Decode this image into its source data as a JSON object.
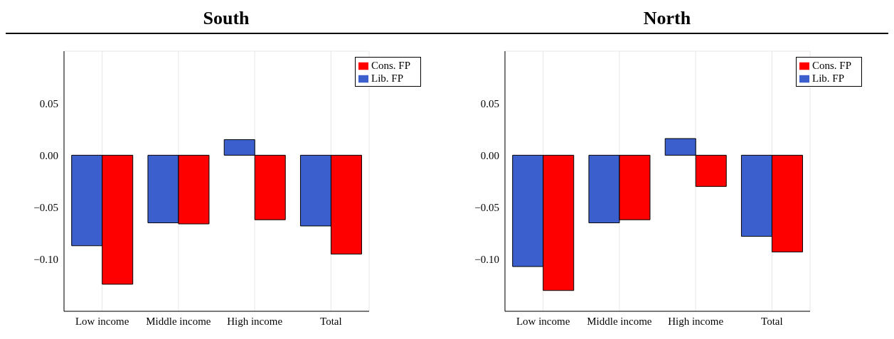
{
  "chart_data": [
    {
      "type": "bar",
      "title": "South",
      "categories": [
        "Low income",
        "Middle income",
        "High income",
        "Total"
      ],
      "series": [
        {
          "name": "Lib. FP",
          "color": "#3b5fcd",
          "values": [
            -0.087,
            -0.065,
            0.015,
            -0.068
          ]
        },
        {
          "name": "Cons. FP",
          "color": "#ff0000",
          "values": [
            -0.124,
            -0.066,
            -0.062,
            -0.095
          ]
        }
      ],
      "ylim": [
        -0.15,
        0.1
      ],
      "yticks": [
        {
          "value": -0.1,
          "label": "−0.10"
        },
        {
          "value": -0.05,
          "label": "−0.05"
        },
        {
          "value": 0,
          "label": "0.00"
        },
        {
          "value": 0.05,
          "label": "0.05"
        }
      ],
      "grid": true,
      "legend": "top right"
    },
    {
      "type": "bar",
      "title": "North",
      "categories": [
        "Low income",
        "Middle income",
        "High income",
        "Total"
      ],
      "series": [
        {
          "name": "Lib. FP",
          "color": "#3b5fcd",
          "values": [
            -0.107,
            -0.065,
            0.016,
            -0.078
          ]
        },
        {
          "name": "Cons. FP",
          "color": "#ff0000",
          "values": [
            -0.13,
            -0.062,
            -0.03,
            -0.093
          ]
        }
      ],
      "ylim": [
        -0.15,
        0.1
      ],
      "yticks": [
        {
          "value": -0.1,
          "label": "−0.10"
        },
        {
          "value": -0.05,
          "label": "−0.05"
        },
        {
          "value": 0,
          "label": "0.00"
        },
        {
          "value": 0.05,
          "label": "0.05"
        }
      ],
      "grid": true,
      "legend": "top right"
    }
  ]
}
